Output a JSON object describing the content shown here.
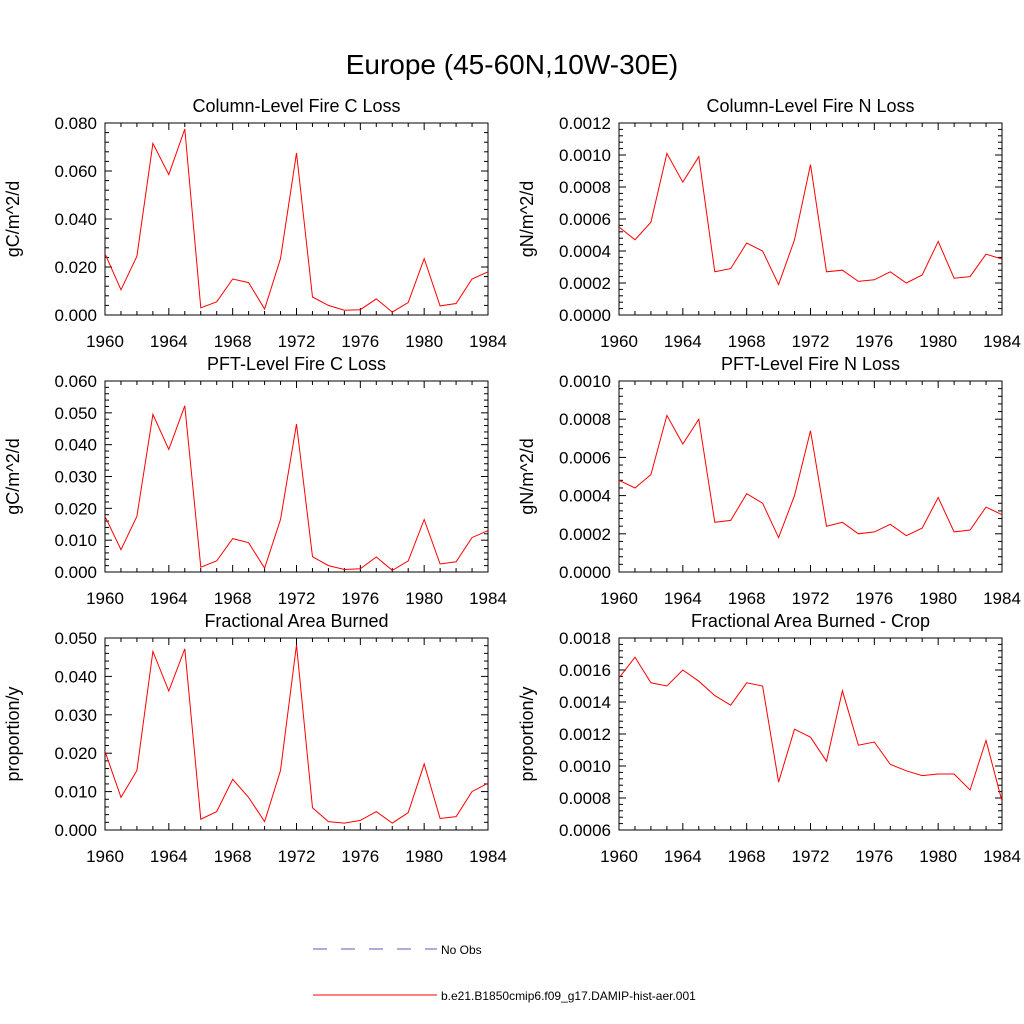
{
  "figure": {
    "title": "Europe (45-60N,10W-30E)",
    "line_color": "#ff0000",
    "obs_color": "#5b5bbb"
  },
  "legend": {
    "no_obs_label": "No Obs",
    "model_label": "b.e21.B1850cmip6.f09_g17.DAMIP-hist-aer.001"
  },
  "chart_data": [
    {
      "type": "line",
      "title": "Column-Level Fire C Loss",
      "ylabel": "gC/m^2/d",
      "xlim": [
        1960,
        1984
      ],
      "ylim": [
        0,
        0.08
      ],
      "xticks": [
        1960,
        1964,
        1968,
        1972,
        1976,
        1980,
        1984
      ],
      "yticks": [
        0,
        0.02,
        0.04,
        0.06,
        0.08
      ],
      "ytick_labels": [
        "0.000",
        "0.020",
        "0.040",
        "0.060",
        "0.080"
      ],
      "series": [
        {
          "x": [
            1960,
            1961,
            1962,
            1963,
            1964,
            1965,
            1966,
            1967,
            1968,
            1969,
            1970,
            1971,
            1972,
            1973,
            1974,
            1975,
            1976,
            1977,
            1978,
            1979,
            1980,
            1981,
            1982,
            1983,
            1984
          ],
          "values": [
            0.0255,
            0.0105,
            0.0245,
            0.0715,
            0.0585,
            0.0775,
            0.003,
            0.0055,
            0.015,
            0.0135,
            0.0025,
            0.0235,
            0.0675,
            0.0075,
            0.004,
            0.002,
            0.0022,
            0.0067,
            0.0012,
            0.0052,
            0.0235,
            0.0038,
            0.0048,
            0.015,
            0.018
          ]
        }
      ]
    },
    {
      "type": "line",
      "title": "Column-Level Fire N Loss",
      "ylabel": "gN/m^2/d",
      "xlim": [
        1960,
        1984
      ],
      "ylim": [
        0,
        0.0012
      ],
      "xticks": [
        1960,
        1964,
        1968,
        1972,
        1976,
        1980,
        1984
      ],
      "yticks": [
        0,
        0.0002,
        0.0004,
        0.0006,
        0.0008,
        0.001,
        0.0012
      ],
      "ytick_labels": [
        "0.0000",
        "0.0002",
        "0.0004",
        "0.0006",
        "0.0008",
        "0.0010",
        "0.0012"
      ],
      "series": [
        {
          "x": [
            1960,
            1961,
            1962,
            1963,
            1964,
            1965,
            1966,
            1967,
            1968,
            1969,
            1970,
            1971,
            1972,
            1973,
            1974,
            1975,
            1976,
            1977,
            1978,
            1979,
            1980,
            1981,
            1982,
            1983,
            1984
          ],
          "values": [
            0.00055,
            0.00047,
            0.00058,
            0.00101,
            0.00083,
            0.00099,
            0.00027,
            0.00029,
            0.00045,
            0.0004,
            0.00019,
            0.00047,
            0.00094,
            0.00027,
            0.00028,
            0.00021,
            0.00022,
            0.00027,
            0.0002,
            0.00025,
            0.00046,
            0.00023,
            0.00024,
            0.00038,
            0.00035
          ]
        }
      ]
    },
    {
      "type": "line",
      "title": "PFT-Level Fire C Loss",
      "ylabel": "gC/m^2/d",
      "xlim": [
        1960,
        1984
      ],
      "ylim": [
        0,
        0.06
      ],
      "xticks": [
        1960,
        1964,
        1968,
        1972,
        1976,
        1980,
        1984
      ],
      "yticks": [
        0,
        0.01,
        0.02,
        0.03,
        0.04,
        0.05,
        0.06
      ],
      "ytick_labels": [
        "0.000",
        "0.010",
        "0.020",
        "0.030",
        "0.040",
        "0.050",
        "0.060"
      ],
      "series": [
        {
          "x": [
            1960,
            1961,
            1962,
            1963,
            1964,
            1965,
            1966,
            1967,
            1968,
            1969,
            1970,
            1971,
            1972,
            1973,
            1974,
            1975,
            1976,
            1977,
            1978,
            1979,
            1980,
            1981,
            1982,
            1983,
            1984
          ],
          "values": [
            0.0175,
            0.007,
            0.0175,
            0.0495,
            0.0385,
            0.0522,
            0.0015,
            0.0035,
            0.0105,
            0.0092,
            0.0012,
            0.0165,
            0.0465,
            0.0048,
            0.002,
            0.0008,
            0.001,
            0.0047,
            0.0005,
            0.0035,
            0.0165,
            0.0025,
            0.0032,
            0.0108,
            0.013
          ]
        }
      ]
    },
    {
      "type": "line",
      "title": "PFT-Level Fire N Loss",
      "ylabel": "gN/m^2/d",
      "xlim": [
        1960,
        1984
      ],
      "ylim": [
        0,
        0.001
      ],
      "xticks": [
        1960,
        1964,
        1968,
        1972,
        1976,
        1980,
        1984
      ],
      "yticks": [
        0,
        0.0002,
        0.0004,
        0.0006,
        0.0008,
        0.001
      ],
      "ytick_labels": [
        "0.0000",
        "0.0002",
        "0.0004",
        "0.0006",
        "0.0008",
        "0.0010"
      ],
      "series": [
        {
          "x": [
            1960,
            1961,
            1962,
            1963,
            1964,
            1965,
            1966,
            1967,
            1968,
            1969,
            1970,
            1971,
            1972,
            1973,
            1974,
            1975,
            1976,
            1977,
            1978,
            1979,
            1980,
            1981,
            1982,
            1983,
            1984
          ],
          "values": [
            0.00048,
            0.00044,
            0.00051,
            0.00082,
            0.00067,
            0.0008,
            0.00026,
            0.00027,
            0.00041,
            0.00036,
            0.00018,
            0.0004,
            0.00074,
            0.00024,
            0.00026,
            0.0002,
            0.00021,
            0.00025,
            0.00019,
            0.00023,
            0.00039,
            0.00021,
            0.00022,
            0.00034,
            0.0003
          ]
        }
      ]
    },
    {
      "type": "line",
      "title": "Fractional Area Burned",
      "ylabel": "proportion/y",
      "xlim": [
        1960,
        1984
      ],
      "ylim": [
        0,
        0.05
      ],
      "xticks": [
        1960,
        1964,
        1968,
        1972,
        1976,
        1980,
        1984
      ],
      "yticks": [
        0,
        0.01,
        0.02,
        0.03,
        0.04,
        0.05
      ],
      "ytick_labels": [
        "0.000",
        "0.010",
        "0.020",
        "0.030",
        "0.040",
        "0.050"
      ],
      "series": [
        {
          "x": [
            1960,
            1961,
            1962,
            1963,
            1964,
            1965,
            1966,
            1967,
            1968,
            1969,
            1970,
            1971,
            1972,
            1973,
            1974,
            1975,
            1976,
            1977,
            1978,
            1979,
            1980,
            1981,
            1982,
            1983,
            1984
          ],
          "values": [
            0.0205,
            0.0085,
            0.0155,
            0.0465,
            0.0362,
            0.0472,
            0.0028,
            0.0048,
            0.0132,
            0.0085,
            0.0022,
            0.0155,
            0.0482,
            0.0058,
            0.0022,
            0.0018,
            0.0025,
            0.0048,
            0.0018,
            0.0045,
            0.0172,
            0.003,
            0.0035,
            0.01,
            0.0122
          ]
        }
      ]
    },
    {
      "type": "line",
      "title": "Fractional Area Burned - Crop",
      "ylabel": "proportion/y",
      "xlim": [
        1960,
        1984
      ],
      "ylim": [
        0.0006,
        0.0018
      ],
      "xticks": [
        1960,
        1964,
        1968,
        1972,
        1976,
        1980,
        1984
      ],
      "yticks": [
        0.0006,
        0.0008,
        0.001,
        0.0012,
        0.0014,
        0.0016,
        0.0018
      ],
      "ytick_labels": [
        "0.0006",
        "0.0008",
        "0.0010",
        "0.0012",
        "0.0014",
        "0.0016",
        "0.0018"
      ],
      "series": [
        {
          "x": [
            1960,
            1961,
            1962,
            1963,
            1964,
            1965,
            1966,
            1967,
            1968,
            1969,
            1970,
            1971,
            1972,
            1973,
            1974,
            1975,
            1976,
            1977,
            1978,
            1979,
            1980,
            1981,
            1982,
            1983,
            1984
          ],
          "values": [
            0.00155,
            0.00168,
            0.00152,
            0.0015,
            0.0016,
            0.00153,
            0.00144,
            0.00138,
            0.00152,
            0.0015,
            0.0009,
            0.00123,
            0.00118,
            0.00103,
            0.00147,
            0.00113,
            0.00115,
            0.00101,
            0.00097,
            0.00094,
            0.00095,
            0.00095,
            0.00085,
            0.00116,
            0.00078
          ]
        }
      ]
    }
  ]
}
